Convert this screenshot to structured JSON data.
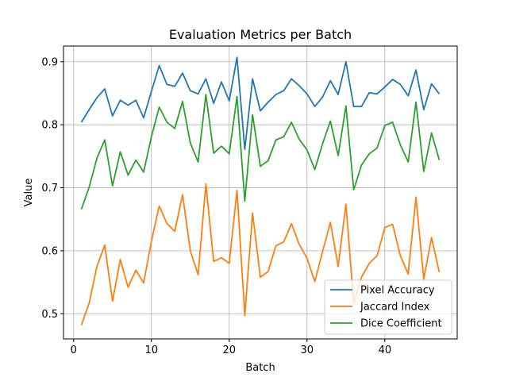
{
  "chart_data": {
    "type": "line",
    "title": "Evaluation Metrics per Batch",
    "xlabel": "Batch",
    "ylabel": "Value",
    "xlim": [
      -1.3,
      49.3
    ],
    "ylim": [
      0.46,
      0.925
    ],
    "xticks": [
      0,
      10,
      20,
      30,
      40
    ],
    "yticks": [
      0.5,
      0.6,
      0.7,
      0.8,
      0.9
    ],
    "grid": true,
    "legend_position": "lower right",
    "x": [
      1,
      2,
      3,
      4,
      5,
      6,
      7,
      8,
      9,
      10,
      11,
      12,
      13,
      14,
      15,
      16,
      17,
      18,
      19,
      20,
      21,
      22,
      23,
      24,
      25,
      26,
      27,
      28,
      29,
      30,
      31,
      32,
      33,
      34,
      35,
      36,
      37,
      38,
      39,
      40,
      41,
      42,
      43,
      44,
      45,
      46,
      47
    ],
    "series": [
      {
        "name": "Pixel Accuracy",
        "color": "#1f77b4",
        "values": [
          0.804,
          0.824,
          0.843,
          0.857,
          0.814,
          0.839,
          0.831,
          0.839,
          0.811,
          0.853,
          0.894,
          0.864,
          0.861,
          0.882,
          0.854,
          0.849,
          0.873,
          0.834,
          0.868,
          0.838,
          0.907,
          0.761,
          0.873,
          0.822,
          0.836,
          0.848,
          0.854,
          0.873,
          0.862,
          0.849,
          0.829,
          0.844,
          0.87,
          0.848,
          0.9,
          0.829,
          0.829,
          0.851,
          0.849,
          0.86,
          0.872,
          0.864,
          0.846,
          0.887,
          0.824,
          0.865,
          0.849
        ]
      },
      {
        "name": "Jaccard Index",
        "color": "#ff7f0e",
        "values": [
          0.482,
          0.517,
          0.575,
          0.609,
          0.52,
          0.586,
          0.542,
          0.569,
          0.549,
          0.615,
          0.671,
          0.643,
          0.631,
          0.689,
          0.6,
          0.562,
          0.706,
          0.583,
          0.589,
          0.58,
          0.696,
          0.497,
          0.66,
          0.558,
          0.567,
          0.608,
          0.614,
          0.643,
          0.61,
          0.588,
          0.551,
          0.599,
          0.645,
          0.575,
          0.674,
          0.517,
          0.558,
          0.58,
          0.592,
          0.637,
          0.642,
          0.592,
          0.563,
          0.685,
          0.555,
          0.621,
          0.566
        ]
      },
      {
        "name": "Dice Coefficient",
        "color": "#2ca02c",
        "values": [
          0.666,
          0.701,
          0.747,
          0.776,
          0.703,
          0.757,
          0.72,
          0.744,
          0.725,
          0.781,
          0.828,
          0.804,
          0.794,
          0.837,
          0.771,
          0.741,
          0.848,
          0.755,
          0.766,
          0.754,
          0.845,
          0.679,
          0.816,
          0.734,
          0.743,
          0.776,
          0.781,
          0.804,
          0.777,
          0.76,
          0.729,
          0.77,
          0.806,
          0.751,
          0.83,
          0.697,
          0.736,
          0.754,
          0.763,
          0.799,
          0.804,
          0.768,
          0.741,
          0.836,
          0.726,
          0.787,
          0.744
        ]
      }
    ]
  }
}
